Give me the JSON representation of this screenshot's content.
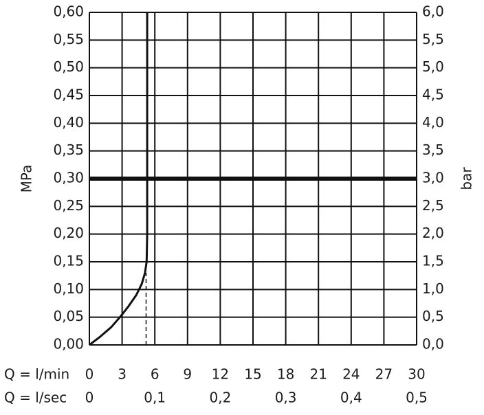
{
  "chart_data": {
    "type": "line",
    "ylabel": "MPa",
    "y2label": "bar",
    "xlabel": "Q = l/min",
    "x2label": "Q = l/sec",
    "xlim": [
      0,
      30
    ],
    "xticks": [
      0,
      3,
      6,
      9,
      12,
      15,
      18,
      21,
      24,
      27,
      30
    ],
    "x2lim": [
      0,
      0.5
    ],
    "x2ticks": [
      0,
      {
        "value": 0.1,
        "label": "0,1"
      },
      {
        "value": 0.2,
        "label": "0,2"
      },
      {
        "value": 0.3,
        "label": "0,3"
      },
      {
        "value": 0.4,
        "label": "0,4"
      },
      {
        "value": 0.5,
        "label": "0,5"
      }
    ],
    "ylim": [
      0,
      0.6
    ],
    "yticks": [
      {
        "value": 0,
        "label": "0,00"
      },
      {
        "value": 0.05,
        "label": "0,05"
      },
      {
        "value": 0.1,
        "label": "0,10"
      },
      {
        "value": 0.15,
        "label": "0,15"
      },
      {
        "value": 0.2,
        "label": "0,20"
      },
      {
        "value": 0.25,
        "label": "0,25"
      },
      {
        "value": 0.3,
        "label": "0,30"
      },
      {
        "value": 0.35,
        "label": "0,35"
      },
      {
        "value": 0.4,
        "label": "0,40"
      },
      {
        "value": 0.45,
        "label": "0,45"
      },
      {
        "value": 0.5,
        "label": "0,50"
      },
      {
        "value": 0.55,
        "label": "0,55"
      },
      {
        "value": 0.6,
        "label": "0,60"
      }
    ],
    "y2lim": [
      0,
      6
    ],
    "y2ticks": [
      {
        "value": 0,
        "label": "0,0"
      },
      {
        "value": 0.5,
        "label": "0,5"
      },
      {
        "value": 1,
        "label": "1,0"
      },
      {
        "value": 1.5,
        "label": "1,5"
      },
      {
        "value": 2,
        "label": "2,0"
      },
      {
        "value": 2.5,
        "label": "2,5"
      },
      {
        "value": 3,
        "label": "3,0"
      },
      {
        "value": 3.5,
        "label": "3,5"
      },
      {
        "value": 4,
        "label": "4,0"
      },
      {
        "value": 4.5,
        "label": "4,5"
      },
      {
        "value": 5,
        "label": "5,0"
      },
      {
        "value": 5.5,
        "label": "5,5"
      },
      {
        "value": 6,
        "label": "6,0"
      }
    ],
    "grid": true,
    "series": [
      {
        "color": "#111111",
        "width": 3,
        "x": [
          0,
          1,
          2,
          2.8,
          3.6,
          4.3,
          4.8,
          5.1,
          5.25,
          5.3,
          5.3
        ],
        "values": [
          0,
          0.015,
          0.032,
          0.05,
          0.07,
          0.09,
          0.11,
          0.13,
          0.15,
          0.2,
          0.6
        ]
      },
      {
        "color": "#111111",
        "width": 6,
        "x": [
          0,
          30
        ],
        "values": [
          0.3,
          0.3
        ]
      },
      {
        "color": "#111111",
        "width": 1.5,
        "dashed": true,
        "x": [
          5.2,
          5.2
        ],
        "values": [
          0,
          0.13
        ]
      }
    ]
  }
}
